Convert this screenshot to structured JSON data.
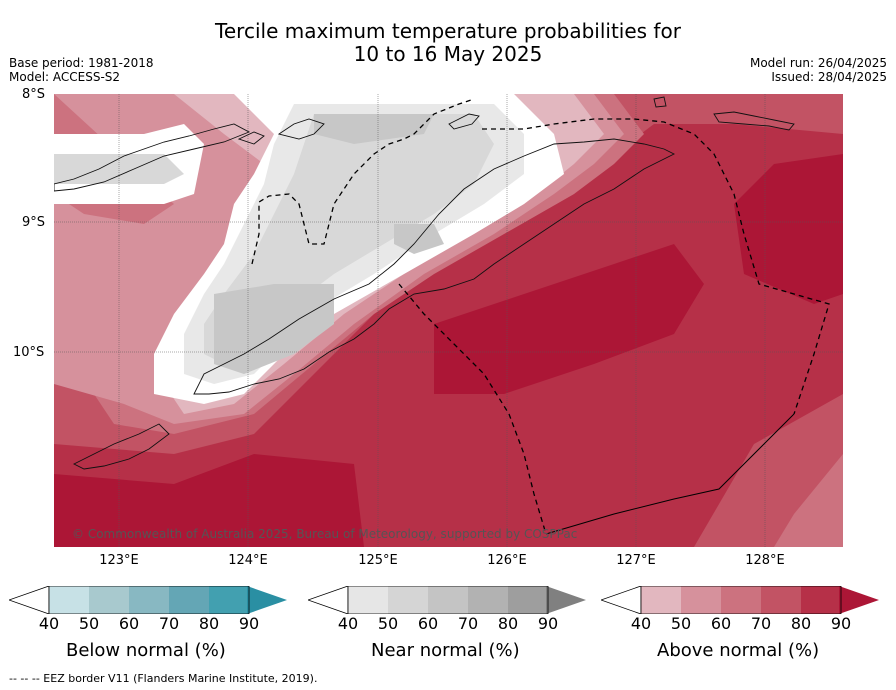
{
  "header": {
    "title_line1": "Tercile maximum temperature probabilities for",
    "title_line2": "10 to 16 May 2025",
    "base_period": "Base period: 1981-2018",
    "model": "Model: ACCESS-S2",
    "model_run": "Model run: 26/04/2025",
    "issued": "Issued: 28/04/2025"
  },
  "map": {
    "lat_labels": [
      "8°S",
      "9°S",
      "10°S"
    ],
    "lon_labels": [
      "123°E",
      "124°E",
      "125°E",
      "126°E",
      "127°E",
      "128°E"
    ],
    "copyright": "© Commonwealth of Australia 2025, Bureau of Meteorology, supported by COSPPac",
    "extent": {
      "lon": [
        122.5,
        128.6
      ],
      "lat": [
        -11.5,
        -8.0
      ]
    },
    "colors": {
      "above_40": "#e2b7bf",
      "above_50": "#d6919c",
      "above_60": "#cc727f",
      "above_70": "#c25364",
      "above_80": "#b63048",
      "above_90": "#ac1636",
      "near_40": "#e8e8e8",
      "near_50": "#d8d8d8",
      "near_60": "#c7c7c7",
      "white": "#ffffff"
    }
  },
  "legends": [
    {
      "caption": "Below normal (%)",
      "ticks": [
        "40",
        "50",
        "60",
        "70",
        "80",
        "90"
      ],
      "colors": [
        "#ffffff",
        "#c7e1e6",
        "#a8c9ce",
        "#88b8c2",
        "#64a6b5",
        "#42a0b0",
        "#2a8fa3"
      ]
    },
    {
      "caption": "Near normal (%)",
      "ticks": [
        "40",
        "50",
        "60",
        "70",
        "80",
        "90"
      ],
      "colors": [
        "#ffffff",
        "#e6e6e6",
        "#d5d5d5",
        "#c4c4c4",
        "#b2b2b2",
        "#9e9e9e",
        "#808080"
      ]
    },
    {
      "caption": "Above normal (%)",
      "ticks": [
        "40",
        "50",
        "60",
        "70",
        "80",
        "90"
      ],
      "colors": [
        "#ffffff",
        "#e2b7bf",
        "#d6919c",
        "#cc727f",
        "#c25364",
        "#b63048",
        "#ac1636"
      ]
    }
  ],
  "footnote": "--  --  -- EEZ border V11 (Flanders Marine Institute, 2019)."
}
